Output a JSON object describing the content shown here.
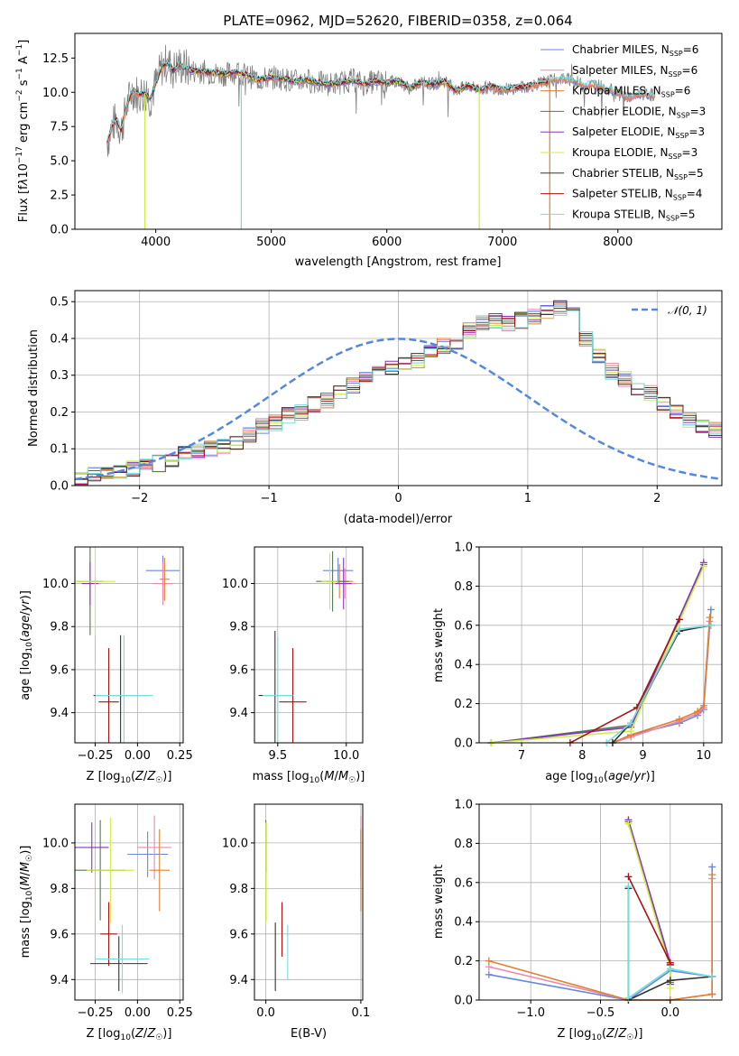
{
  "colors": [
    "#6688dd",
    "#ee88aa",
    "#e08030",
    "#557755",
    "#8833bb",
    "#ccee44",
    "#333333",
    "#aa1111",
    "#77dddd"
  ],
  "legend": [
    "Chabrier MILES, N_SSP=6",
    "Salpeter MILES, N_SSP=6",
    "Kroupa MILES, N_SSP=6",
    "Chabrier ELODIE, N_SSP=3",
    "Salpeter ELODIE, N_SSP=3",
    "Kroupa ELODIE, N_SSP=3",
    "Chabrier STELIB, N_SSP=5",
    "Salpeter STELIB, N_SSP=4",
    "Kroupa STELIB, N_SSP=5"
  ],
  "chart_data": [
    {
      "type": "line",
      "title": "PLATE=0962, MJD=52620, FIBERID=0358, z=0.064",
      "xlabel": "wavelength [Angstrom, rest frame]",
      "ylabel": "Flux [f_λ 10^-17 erg cm^-2 s^-1 A^-1]",
      "xlim": [
        3300,
        8900
      ],
      "ylim": [
        0,
        14.3
      ],
      "xticks": [
        4000,
        5000,
        6000,
        7000,
        8000
      ],
      "yticks": [
        0.0,
        2.5,
        5.0,
        7.5,
        10.0,
        12.5
      ],
      "grid": false,
      "legend_position": "top-right",
      "data_x": [
        3580,
        3620,
        3660,
        3700,
        3750,
        3800,
        3850,
        3900,
        3950,
        4000,
        4050,
        4100,
        4150,
        4200,
        4300,
        4400,
        4500,
        4600,
        4700,
        4800,
        4900,
        5000,
        5100,
        5200,
        5300,
        5400,
        5500,
        5600,
        5700,
        5800,
        5900,
        6000,
        6100,
        6200,
        6300,
        6400,
        6500,
        6600,
        6700,
        6800,
        6900,
        7000,
        7100,
        7200,
        7300,
        7400,
        7500,
        7600,
        7700,
        7800,
        7900,
        8000,
        8100,
        8200,
        8300
      ],
      "data_y": [
        6.3,
        7.5,
        8.0,
        7.2,
        9.0,
        10.2,
        9.8,
        10.0,
        9.5,
        10.6,
        11.8,
        12.2,
        11.6,
        12.0,
        11.6,
        11.5,
        11.4,
        11.3,
        11.5,
        11.2,
        10.9,
        11.1,
        11.0,
        10.8,
        10.9,
        10.7,
        10.6,
        10.7,
        10.9,
        10.6,
        10.8,
        10.7,
        10.8,
        10.3,
        10.7,
        10.6,
        10.8,
        10.1,
        10.5,
        10.2,
        10.4,
        10.2,
        10.3,
        10.4,
        10.6,
        10.8,
        11.0,
        10.9,
        10.5,
        10.6,
        10.3,
        9.9,
        9.6,
        9.9,
        9.8
      ]
    },
    {
      "type": "step",
      "xlabel": "(data-model)/error",
      "ylabel": "Normed distribution",
      "xlim": [
        -2.5,
        2.5
      ],
      "ylim": [
        0,
        0.53
      ],
      "xticks": [
        -2,
        -1,
        0,
        1,
        2
      ],
      "yticks": [
        0.0,
        0.1,
        0.2,
        0.3,
        0.4,
        0.5
      ],
      "grid": true,
      "legend_position": "top-right",
      "reference": "N(0,1)",
      "bin_width": 0.1,
      "hist_start": -2.5,
      "base_hist": [
        0.02,
        0.03,
        0.04,
        0.04,
        0.045,
        0.05,
        0.06,
        0.07,
        0.085,
        0.09,
        0.1,
        0.11,
        0.12,
        0.14,
        0.16,
        0.17,
        0.19,
        0.2,
        0.22,
        0.23,
        0.25,
        0.27,
        0.29,
        0.31,
        0.32,
        0.33,
        0.34,
        0.36,
        0.38,
        0.39,
        0.42,
        0.44,
        0.45,
        0.44,
        0.45,
        0.46,
        0.47,
        0.48,
        0.47,
        0.4,
        0.35,
        0.31,
        0.29,
        0.26,
        0.25,
        0.22,
        0.2,
        0.18,
        0.16,
        0.15,
        0.13,
        0.12,
        0.11,
        0.1,
        0.09,
        0.07,
        0.06,
        0.055,
        0.05,
        0.045,
        0.04,
        0.035,
        0.03,
        0.03,
        0.03,
        0.02,
        0.02,
        0.015,
        0.01,
        0.01,
        0.01,
        0.01,
        0.01,
        0.01
      ]
    },
    {
      "type": "scatter",
      "xlabel": "Z [log10(Z/Z☉)]",
      "ylabel": "age [log10(age/yr)]",
      "xlim": [
        -0.37,
        0.27
      ],
      "ylim": [
        9.26,
        10.17
      ],
      "xticks": [
        -0.25,
        0.0,
        0.25
      ],
      "yticks": [
        9.4,
        9.6,
        9.8,
        10.0
      ],
      "points": [
        {
          "x": 0.15,
          "y": 10.06,
          "xerr": 0.1,
          "yerr": 0.07
        },
        {
          "x": 0.15,
          "y": 10.0,
          "xerr": 0.06,
          "yerr": 0.1
        },
        {
          "x": 0.16,
          "y": 10.02,
          "xerr": 0.03,
          "yerr": 0.1
        },
        {
          "x": -0.28,
          "y": 10.01,
          "xerr": 0.08,
          "yerr": 0.25
        },
        {
          "x": -0.28,
          "y": 10.0,
          "xerr": 0.05,
          "yerr": 0.1
        },
        {
          "x": -0.25,
          "y": 10.01,
          "xerr": 0.12,
          "yerr": 0.25
        },
        {
          "x": -0.1,
          "y": 9.48,
          "xerr": 0.16,
          "yerr": 0.28
        },
        {
          "x": -0.17,
          "y": 9.45,
          "xerr": 0.06,
          "yerr": 0.25
        },
        {
          "x": -0.08,
          "y": 9.48,
          "xerr": 0.17,
          "yerr": 0.28
        }
      ]
    },
    {
      "type": "scatter",
      "xlabel": "mass [log10(M/M☉)]",
      "ylabel": "",
      "xlim": [
        9.33,
        10.12
      ],
      "ylim": [
        9.26,
        10.17
      ],
      "xticks": [
        9.5,
        10.0
      ],
      "yticks": [
        9.4,
        9.6,
        9.8,
        10.0
      ],
      "points": [
        {
          "x": 9.94,
          "y": 10.06,
          "xerr": 0.11,
          "yerr": 0.06
        },
        {
          "x": 9.99,
          "y": 10.0,
          "xerr": 0.08,
          "yerr": 0.07
        },
        {
          "x": 9.95,
          "y": 10.01,
          "xerr": 0.1,
          "yerr": 0.08
        },
        {
          "x": 9.9,
          "y": 10.01,
          "xerr": 0.12,
          "yerr": 0.14
        },
        {
          "x": 9.98,
          "y": 10.0,
          "xerr": 0.06,
          "yerr": 0.12
        },
        {
          "x": 9.88,
          "y": 10.01,
          "xerr": 0.06,
          "yerr": 0.13
        },
        {
          "x": 9.48,
          "y": 9.48,
          "xerr": 0.12,
          "yerr": 0.3
        },
        {
          "x": 9.61,
          "y": 9.45,
          "xerr": 0.1,
          "yerr": 0.25
        },
        {
          "x": 9.5,
          "y": 9.48,
          "xerr": 0.11,
          "yerr": 0.27
        }
      ]
    },
    {
      "type": "line",
      "xlabel": "age [log10(age/yr)]",
      "ylabel": "mass weight",
      "xlim": [
        6.3,
        10.3
      ],
      "ylim": [
        0,
        1.0
      ],
      "xticks": [
        7,
        8,
        9,
        10
      ],
      "yticks": [
        0.0,
        0.2,
        0.4,
        0.6,
        0.8,
        1.0
      ],
      "grid": true,
      "series": [
        {
          "x": [
            8.5,
            8.8,
            9.6,
            9.9,
            10.0,
            10.12
          ],
          "y": [
            0.0,
            0.04,
            0.1,
            0.14,
            0.17,
            0.68
          ]
        },
        {
          "x": [
            8.5,
            8.8,
            9.6,
            9.9,
            10.0,
            10.1
          ],
          "y": [
            0.0,
            0.03,
            0.11,
            0.15,
            0.18,
            0.62
          ]
        },
        {
          "x": [
            8.5,
            8.8,
            9.6,
            9.9,
            10.0,
            10.1
          ],
          "y": [
            0.0,
            0.04,
            0.12,
            0.16,
            0.19,
            0.64
          ]
        },
        {
          "x": [
            6.5,
            8.8,
            10.0
          ],
          "y": [
            0.0,
            0.09,
            0.91
          ]
        },
        {
          "x": [
            6.5,
            8.8,
            10.0
          ],
          "y": [
            0.0,
            0.08,
            0.92
          ]
        },
        {
          "x": [
            6.5,
            8.8,
            10.0
          ],
          "y": [
            0.0,
            0.06,
            0.9
          ]
        },
        {
          "x": [
            8.5,
            8.8,
            9.6,
            10.12
          ],
          "y": [
            0.0,
            0.1,
            0.57,
            0.6
          ]
        },
        {
          "x": [
            7.8,
            8.9,
            9.6
          ],
          "y": [
            0.0,
            0.18,
            0.63
          ]
        },
        {
          "x": [
            8.4,
            8.8,
            9.6,
            10.12
          ],
          "y": [
            0.0,
            0.1,
            0.58,
            0.6
          ]
        }
      ]
    },
    {
      "type": "scatter",
      "xlabel": "Z [log10(Z/Z☉)]",
      "ylabel": "mass [log10(M/M☉)]",
      "xlim": [
        -0.37,
        0.27
      ],
      "ylim": [
        9.31,
        10.17
      ],
      "xticks": [
        -0.25,
        0.0,
        0.25
      ],
      "yticks": [
        9.4,
        9.6,
        9.8,
        10.0
      ],
      "points": [
        {
          "x": 0.06,
          "y": 9.95,
          "xerr": 0.12,
          "yerr": 0.1
        },
        {
          "x": 0.1,
          "y": 9.98,
          "xerr": 0.1,
          "yerr": 0.14
        },
        {
          "x": 0.13,
          "y": 9.88,
          "xerr": 0.06,
          "yerr": 0.18
        },
        {
          "x": -0.22,
          "y": 9.88,
          "xerr": 0.15,
          "yerr": 0.22
        },
        {
          "x": -0.27,
          "y": 9.98,
          "xerr": 0.1,
          "yerr": 0.11
        },
        {
          "x": -0.16,
          "y": 9.88,
          "xerr": 0.14,
          "yerr": 0.23
        },
        {
          "x": -0.11,
          "y": 9.47,
          "xerr": 0.17,
          "yerr": 0.12
        },
        {
          "x": -0.17,
          "y": 9.6,
          "xerr": 0.05,
          "yerr": 0.14
        },
        {
          "x": -0.09,
          "y": 9.49,
          "xerr": 0.16,
          "yerr": 0.15
        }
      ]
    },
    {
      "type": "scatter",
      "xlabel": "E(B-V)",
      "ylabel": "",
      "xlim": [
        -0.012,
        0.102
      ],
      "ylim": [
        9.31,
        10.17
      ],
      "xticks": [
        0.0,
        0.1
      ],
      "yticks": [
        9.4,
        9.6,
        9.8,
        10.0
      ],
      "points": [
        {
          "x": 0.1,
          "y": 9.95,
          "xerr": 0,
          "yerr": 0.1
        },
        {
          "x": 0.1,
          "y": 9.98,
          "xerr": 0,
          "yerr": 0.14
        },
        {
          "x": 0.1,
          "y": 9.88,
          "xerr": 0,
          "yerr": 0.18
        },
        {
          "x": 0.0,
          "y": 9.88,
          "xerr": 0,
          "yerr": 0.22
        },
        {
          "x": 0.0,
          "y": 9.98,
          "xerr": 0,
          "yerr": 0.11
        },
        {
          "x": 0.0,
          "y": 9.87,
          "xerr": 0,
          "yerr": 0.22
        },
        {
          "x": 0.01,
          "y": 9.5,
          "xerr": 0,
          "yerr": 0.15
        },
        {
          "x": 0.017,
          "y": 9.62,
          "xerr": 0,
          "yerr": 0.12
        },
        {
          "x": 0.023,
          "y": 9.52,
          "xerr": 0,
          "yerr": 0.12
        }
      ]
    },
    {
      "type": "line",
      "xlabel": "Z [log10(Z/Z☉)]",
      "ylabel": "mass weight",
      "xlim": [
        -1.37,
        0.37
      ],
      "ylim": [
        0,
        1.0
      ],
      "xticks": [
        -1.0,
        -0.5,
        0.0
      ],
      "yticks": [
        0.0,
        0.2,
        0.4,
        0.6,
        0.8,
        1.0
      ],
      "grid": true,
      "series": [
        {
          "x": [
            -1.3,
            -0.3,
            0.0,
            0.3,
            0.3,
            0.3
          ],
          "y": [
            0.13,
            0.0,
            0.15,
            0.12,
            0.03,
            0.68
          ]
        },
        {
          "x": [
            -1.3,
            -0.3,
            0.0,
            0.3,
            0.3,
            0.3
          ],
          "y": [
            0.17,
            0.0,
            0.0,
            0.03,
            0.03,
            0.62
          ]
        },
        {
          "x": [
            -1.3,
            -0.3,
            0.0,
            0.3,
            0.3,
            0.3
          ],
          "y": [
            0.2,
            0.0,
            0.0,
            0.03,
            0.03,
            0.64
          ]
        },
        {
          "x": [
            -0.3,
            0.0,
            0.0
          ],
          "y": [
            0.91,
            0.18,
            0.09
          ]
        },
        {
          "x": [
            -0.3,
            0.0,
            0.0
          ],
          "y": [
            0.92,
            0.19,
            0.08
          ]
        },
        {
          "x": [
            -0.3,
            0.0,
            0.0
          ],
          "y": [
            0.9,
            0.16,
            0.06
          ]
        },
        {
          "x": [
            -0.3,
            -0.3,
            0.0,
            0.3
          ],
          "y": [
            0.57,
            0.0,
            0.1,
            0.12
          ]
        },
        {
          "x": [
            -0.3,
            0.0,
            0.0
          ],
          "y": [
            0.63,
            0.19,
            0.18
          ]
        },
        {
          "x": [
            -0.3,
            -0.3,
            0.0,
            0.3
          ],
          "y": [
            0.58,
            0.01,
            0.16,
            0.12
          ]
        }
      ]
    }
  ]
}
